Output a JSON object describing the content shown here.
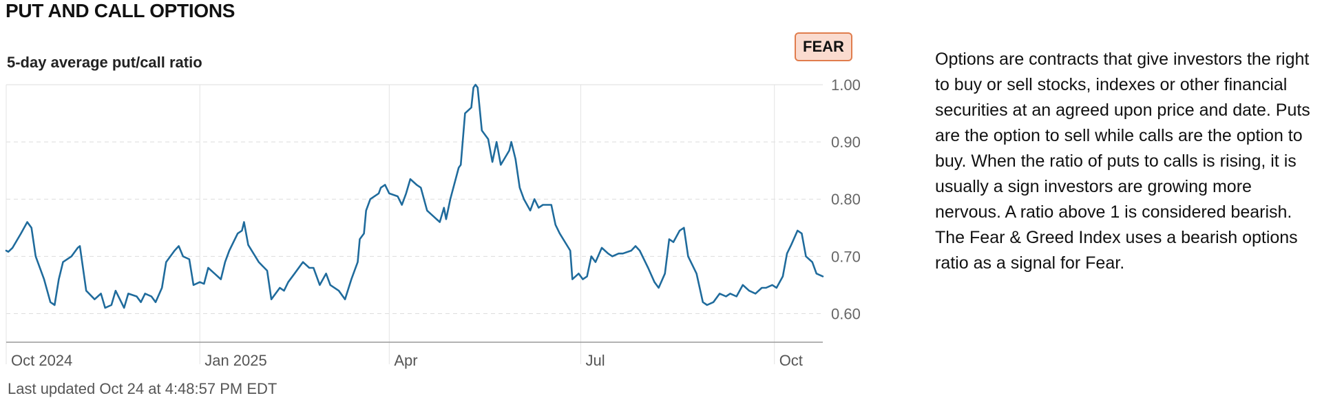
{
  "section_title": "PUT AND CALL OPTIONS",
  "badge": {
    "label": "FEAR",
    "color": "#e07c4c"
  },
  "updated": "Last updated Oct 24 at 4:48:57 PM EDT",
  "description": "Options are contracts that give investors the right to buy or sell stocks, indexes or other financial securities at an agreed upon price and date. Puts are the option to sell while calls are the option to buy. When the ratio of puts to calls is rising, it is usually a sign investors are growing more nervous. A ratio above 1 is considered bearish. The Fear & Greed Index uses a bearish options ratio as a signal for Fear.",
  "chart_data": {
    "type": "line",
    "title": "5-day average put/call ratio",
    "line_color": "#1f6b9c",
    "ylim": [
      0.55,
      1.0
    ],
    "y_ticks": [
      1.0,
      0.9,
      0.8,
      0.7,
      0.6
    ],
    "y_tick_labels": [
      "1.00",
      "0.90",
      "0.80",
      "0.70",
      "0.60"
    ],
    "x_ticks": [
      {
        "date": "2024-10-01",
        "label": "Oct 2024"
      },
      {
        "date": "2025-01-01",
        "label": "Jan 2025"
      },
      {
        "date": "2025-04-01",
        "label": "Apr"
      },
      {
        "date": "2025-07-01",
        "label": "Jul"
      },
      {
        "date": "2025-10-01",
        "label": "Oct"
      }
    ],
    "xlim": [
      "2024-10-01",
      "2025-10-24"
    ],
    "grid": {
      "vertical": true,
      "horizontal_dashed": true
    },
    "series": [
      {
        "values": [
          [
            "2024-10-01",
            0.71
          ],
          [
            "2024-10-02",
            0.708
          ],
          [
            "2024-10-04",
            0.715
          ],
          [
            "2024-10-08",
            0.74
          ],
          [
            "2024-10-11",
            0.76
          ],
          [
            "2024-10-13",
            0.75
          ],
          [
            "2024-10-15",
            0.7
          ],
          [
            "2024-10-19",
            0.66
          ],
          [
            "2024-10-22",
            0.62
          ],
          [
            "2024-10-24",
            0.615
          ],
          [
            "2024-10-26",
            0.66
          ],
          [
            "2024-10-28",
            0.69
          ],
          [
            "2024-11-01",
            0.7
          ],
          [
            "2024-11-04",
            0.715
          ],
          [
            "2024-11-05",
            0.718
          ],
          [
            "2024-11-08",
            0.64
          ],
          [
            "2024-11-12",
            0.625
          ],
          [
            "2024-11-15",
            0.635
          ],
          [
            "2024-11-17",
            0.61
          ],
          [
            "2024-11-20",
            0.615
          ],
          [
            "2024-11-22",
            0.64
          ],
          [
            "2024-11-24",
            0.625
          ],
          [
            "2024-11-26",
            0.61
          ],
          [
            "2024-11-28",
            0.635
          ],
          [
            "2024-12-02",
            0.63
          ],
          [
            "2024-12-04",
            0.62
          ],
          [
            "2024-12-06",
            0.635
          ],
          [
            "2024-12-09",
            0.63
          ],
          [
            "2024-12-11",
            0.62
          ],
          [
            "2024-12-14",
            0.645
          ],
          [
            "2024-12-16",
            0.69
          ],
          [
            "2024-12-20",
            0.71
          ],
          [
            "2024-12-22",
            0.718
          ],
          [
            "2024-12-24",
            0.7
          ],
          [
            "2024-12-27",
            0.695
          ],
          [
            "2024-12-29",
            0.65
          ],
          [
            "2025-01-01",
            0.655
          ],
          [
            "2025-01-03",
            0.652
          ],
          [
            "2025-01-05",
            0.68
          ],
          [
            "2025-01-08",
            0.67
          ],
          [
            "2025-01-11",
            0.66
          ],
          [
            "2025-01-13",
            0.69
          ],
          [
            "2025-01-15",
            0.71
          ],
          [
            "2025-01-19",
            0.74
          ],
          [
            "2025-01-21",
            0.745
          ],
          [
            "2025-01-22",
            0.76
          ],
          [
            "2025-01-24",
            0.72
          ],
          [
            "2025-01-29",
            0.69
          ],
          [
            "2025-02-02",
            0.675
          ],
          [
            "2025-02-04",
            0.625
          ],
          [
            "2025-02-08",
            0.645
          ],
          [
            "2025-02-10",
            0.64
          ],
          [
            "2025-02-12",
            0.655
          ],
          [
            "2025-02-15",
            0.67
          ],
          [
            "2025-02-19",
            0.69
          ],
          [
            "2025-02-22",
            0.68
          ],
          [
            "2025-02-24",
            0.68
          ],
          [
            "2025-02-27",
            0.65
          ],
          [
            "2025-03-02",
            0.67
          ],
          [
            "2025-03-04",
            0.65
          ],
          [
            "2025-03-08",
            0.64
          ],
          [
            "2025-03-11",
            0.625
          ],
          [
            "2025-03-14",
            0.66
          ],
          [
            "2025-03-17",
            0.69
          ],
          [
            "2025-03-18",
            0.73
          ],
          [
            "2025-03-20",
            0.74
          ],
          [
            "2025-03-21",
            0.78
          ],
          [
            "2025-03-23",
            0.8
          ],
          [
            "2025-03-27",
            0.81
          ],
          [
            "2025-03-28",
            0.82
          ],
          [
            "2025-03-30",
            0.825
          ],
          [
            "2025-04-01",
            0.81
          ],
          [
            "2025-04-05",
            0.805
          ],
          [
            "2025-04-07",
            0.79
          ],
          [
            "2025-04-09",
            0.81
          ],
          [
            "2025-04-11",
            0.835
          ],
          [
            "2025-04-14",
            0.825
          ],
          [
            "2025-04-16",
            0.82
          ],
          [
            "2025-04-19",
            0.78
          ],
          [
            "2025-04-22",
            0.77
          ],
          [
            "2025-04-25",
            0.76
          ],
          [
            "2025-04-27",
            0.785
          ],
          [
            "2025-04-28",
            0.765
          ],
          [
            "2025-04-30",
            0.8
          ],
          [
            "2025-05-04",
            0.855
          ],
          [
            "2025-05-05",
            0.86
          ],
          [
            "2025-05-07",
            0.95
          ],
          [
            "2025-05-10",
            0.96
          ],
          [
            "2025-05-11",
            0.995
          ],
          [
            "2025-05-12",
            1.0
          ],
          [
            "2025-05-13",
            0.995
          ],
          [
            "2025-05-15",
            0.92
          ],
          [
            "2025-05-18",
            0.905
          ],
          [
            "2025-05-20",
            0.865
          ],
          [
            "2025-05-22",
            0.9
          ],
          [
            "2025-05-24",
            0.86
          ],
          [
            "2025-05-28",
            0.885
          ],
          [
            "2025-05-29",
            0.9
          ],
          [
            "2025-05-31",
            0.87
          ],
          [
            "2025-06-02",
            0.82
          ],
          [
            "2025-06-04",
            0.8
          ],
          [
            "2025-06-07",
            0.78
          ],
          [
            "2025-06-09",
            0.8
          ],
          [
            "2025-06-11",
            0.785
          ],
          [
            "2025-06-13",
            0.79
          ],
          [
            "2025-06-17",
            0.79
          ],
          [
            "2025-06-19",
            0.755
          ],
          [
            "2025-06-21",
            0.74
          ],
          [
            "2025-06-26",
            0.71
          ],
          [
            "2025-06-27",
            0.66
          ],
          [
            "2025-06-30",
            0.67
          ],
          [
            "2025-07-02",
            0.66
          ],
          [
            "2025-07-04",
            0.665
          ],
          [
            "2025-07-06",
            0.7
          ],
          [
            "2025-07-08",
            0.69
          ],
          [
            "2025-07-11",
            0.715
          ],
          [
            "2025-07-14",
            0.705
          ],
          [
            "2025-07-16",
            0.7
          ],
          [
            "2025-07-19",
            0.705
          ],
          [
            "2025-07-21",
            0.705
          ],
          [
            "2025-07-25",
            0.71
          ],
          [
            "2025-07-27",
            0.718
          ],
          [
            "2025-07-29",
            0.71
          ],
          [
            "2025-08-02",
            0.68
          ],
          [
            "2025-08-05",
            0.655
          ],
          [
            "2025-08-07",
            0.645
          ],
          [
            "2025-08-10",
            0.67
          ],
          [
            "2025-08-12",
            0.73
          ],
          [
            "2025-08-14",
            0.725
          ],
          [
            "2025-08-17",
            0.745
          ],
          [
            "2025-08-19",
            0.75
          ],
          [
            "2025-08-21",
            0.7
          ],
          [
            "2025-08-25",
            0.67
          ],
          [
            "2025-08-28",
            0.62
          ],
          [
            "2025-08-30",
            0.615
          ],
          [
            "2025-09-02",
            0.62
          ],
          [
            "2025-09-05",
            0.635
          ],
          [
            "2025-09-08",
            0.63
          ],
          [
            "2025-09-10",
            0.635
          ],
          [
            "2025-09-13",
            0.63
          ],
          [
            "2025-09-16",
            0.65
          ],
          [
            "2025-09-19",
            0.64
          ],
          [
            "2025-09-22",
            0.635
          ],
          [
            "2025-09-25",
            0.645
          ],
          [
            "2025-09-27",
            0.645
          ],
          [
            "2025-09-30",
            0.65
          ],
          [
            "2025-10-02",
            0.645
          ],
          [
            "2025-10-05",
            0.665
          ],
          [
            "2025-10-07",
            0.705
          ],
          [
            "2025-10-09",
            0.72
          ],
          [
            "2025-10-12",
            0.745
          ],
          [
            "2025-10-14",
            0.74
          ],
          [
            "2025-10-16",
            0.7
          ],
          [
            "2025-10-19",
            0.69
          ],
          [
            "2025-10-21",
            0.67
          ],
          [
            "2025-10-24",
            0.665
          ]
        ]
      }
    ]
  }
}
